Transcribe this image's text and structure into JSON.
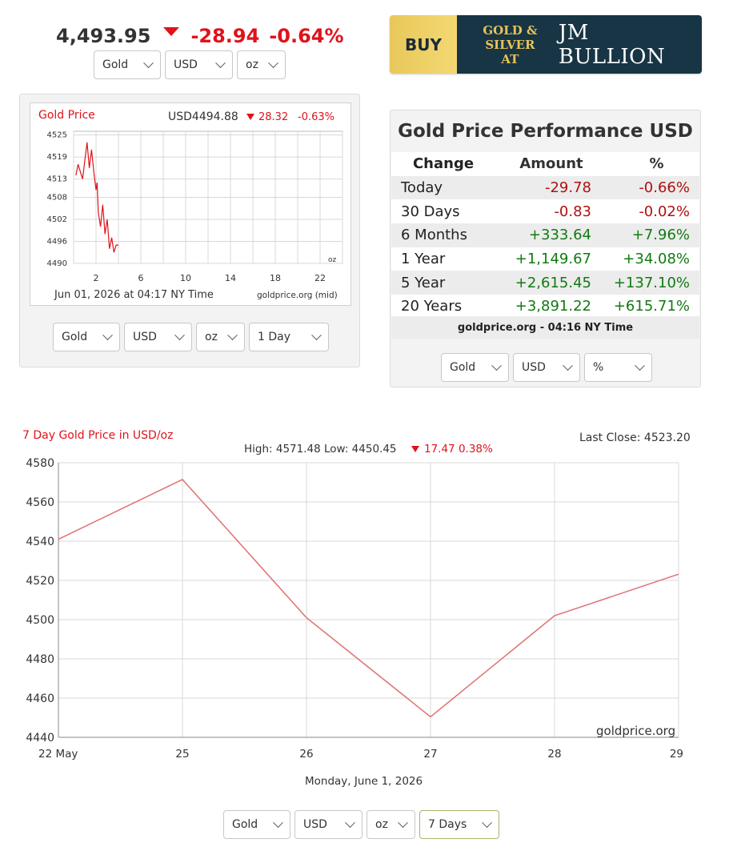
{
  "top": {
    "price": "4,493.95",
    "change": "-28.94",
    "change_pct": "-0.64%",
    "selects": [
      "Gold",
      "USD",
      "oz"
    ]
  },
  "banner": {
    "buy": "BUY",
    "line1": "GOLD &",
    "line2": "SILVER AT",
    "brand": "JM BULLION"
  },
  "mini": {
    "title": "Gold Price",
    "price": "USD4494.88",
    "change": "28.32",
    "change_pct": "-0.63%",
    "unit": "oz",
    "timestamp": "Jun 01, 2026 at 04:17 NY Time",
    "source": "goldprice.org (mid)",
    "selects": [
      "Gold",
      "USD",
      "oz",
      "1 Day"
    ]
  },
  "performance": {
    "title": "Gold Price Performance USD",
    "headers": [
      "Change",
      "Amount",
      "%"
    ],
    "rows": [
      {
        "period": "Today",
        "amount": "-29.78",
        "pct": "-0.66%"
      },
      {
        "period": "30 Days",
        "amount": "-0.83",
        "pct": "-0.02%"
      },
      {
        "period": "6 Months",
        "amount": "+333.64",
        "pct": "+7.96%"
      },
      {
        "period": "1 Year",
        "amount": "+1,149.67",
        "pct": "+34.08%"
      },
      {
        "period": "5 Year",
        "amount": "+2,615.45",
        "pct": "+137.10%"
      },
      {
        "period": "20 Years",
        "amount": "+3,891.22",
        "pct": "+615.71%"
      }
    ],
    "footer": "goldprice.org - 04:16 NY Time",
    "selects": [
      "Gold",
      "USD",
      "%"
    ]
  },
  "big": {
    "selects": [
      "Gold",
      "USD",
      "oz",
      "7 Days"
    ]
  },
  "colors": {
    "down": "#e0121a",
    "line": "#e07070",
    "neg": "#b01010",
    "pos": "#127a12"
  },
  "chart_data": [
    {
      "type": "line",
      "title": "Gold Price",
      "x": [
        0.2,
        0.4,
        0.6,
        0.8,
        1.0,
        1.2,
        1.4,
        1.6,
        1.8,
        2.0,
        2.1,
        2.2,
        2.4,
        2.6,
        2.8,
        3.0,
        3.2,
        3.4,
        3.6,
        3.8,
        4.0
      ],
      "values": [
        4514,
        4517,
        4515,
        4513,
        4518,
        4523,
        4516,
        4521,
        4515,
        4510,
        4512,
        4504,
        4500,
        4506,
        4498,
        4502,
        4494,
        4497,
        4493,
        4495,
        4495
      ],
      "x_ticks": [
        2,
        6,
        10,
        14,
        18,
        22
      ],
      "y_ticks": [
        4525,
        4519,
        4513,
        4508,
        4502,
        4496,
        4490
      ],
      "xlim": [
        0,
        24
      ],
      "ylim": [
        4490,
        4526
      ],
      "grid": true
    },
    {
      "type": "line",
      "title": "7 Day Gold Price in USD/oz",
      "subtitle": "High: 4571.48 Low: 4450.45",
      "subtitle_change": "17.47 0.38%",
      "last_close": "Last Close: 4523.20",
      "categories": [
        "22 May",
        "25",
        "26",
        "27",
        "28",
        "29"
      ],
      "values": [
        4541,
        4571.48,
        4501,
        4450.45,
        4502,
        4523.2
      ],
      "xlabel": "Monday, June 1, 2026",
      "watermark": "goldprice.org",
      "y_ticks": [
        4580,
        4560,
        4540,
        4520,
        4500,
        4480,
        4460,
        4440
      ],
      "ylim": [
        4440,
        4580
      ],
      "grid": true
    }
  ]
}
